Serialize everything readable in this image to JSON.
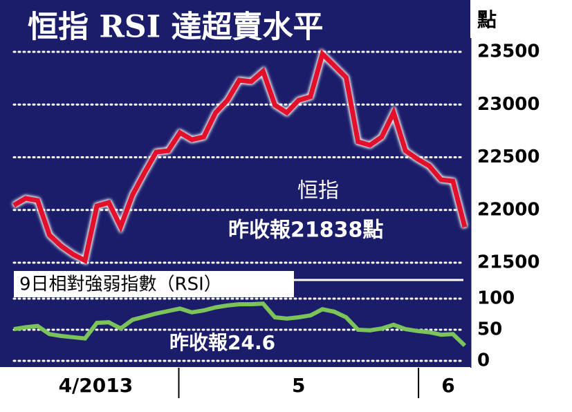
{
  "chart_data": [
    {
      "type": "line",
      "title": "恒指 RSI 達超賣水平",
      "y_label": "點",
      "categories": [
        null,
        null,
        null,
        null,
        null,
        null,
        null,
        null,
        null,
        null,
        null,
        null,
        null,
        null,
        null,
        null,
        null,
        null,
        null,
        null,
        null,
        null,
        null,
        null,
        null,
        null,
        null,
        null,
        null,
        null,
        null,
        null,
        null,
        null,
        null,
        null,
        null,
        null,
        null
      ],
      "series": [
        {
          "name": "恒指",
          "color": "#e3102b",
          "values": [
            22044,
            22110,
            22090,
            21762,
            21657,
            21579,
            21520,
            22038,
            22070,
            21841,
            22143,
            22352,
            22549,
            22562,
            22733,
            22667,
            22693,
            22923,
            23041,
            23231,
            23218,
            23316,
            22995,
            22923,
            23041,
            23074,
            23480,
            23369,
            23257,
            22648,
            22615,
            22693,
            22923,
            22562,
            22484,
            22418,
            22287,
            22274,
            21838
          ]
        }
      ],
      "annotations": [
        "昨收報21838點"
      ],
      "ylim": [
        21500,
        23500
      ],
      "yticks": [
        21500,
        22000,
        22500,
        23000,
        23500
      ],
      "grid": true
    },
    {
      "type": "line",
      "categories": [
        null,
        null,
        null,
        null,
        null,
        null,
        null,
        null,
        null,
        null,
        null,
        null,
        null,
        null,
        null,
        null,
        null,
        null,
        null,
        null,
        null,
        null,
        null,
        null,
        null,
        null,
        null,
        null,
        null,
        null,
        null,
        null,
        null,
        null,
        null,
        null,
        null,
        null,
        null
      ],
      "series": [
        {
          "name": "9日相對強弱指數（RSI）",
          "color": "#7cc35a",
          "values": [
            51,
            54,
            56,
            43,
            40,
            38,
            36,
            61,
            62,
            52,
            66,
            71,
            76,
            80,
            84,
            78,
            81,
            86,
            89,
            91,
            91,
            92,
            70,
            68,
            70,
            73,
            83,
            79,
            70,
            50,
            49,
            52,
            58,
            51,
            48,
            46,
            42,
            43,
            24.6
          ]
        }
      ],
      "annotations": [
        "昨收報24.6"
      ],
      "ylim": [
        0,
        100
      ],
      "yticks": [
        0,
        50,
        100
      ],
      "grid": true,
      "xticks": [
        {
          "value": 6.9,
          "label": "4/2013"
        },
        {
          "value": 24,
          "label": "5"
        },
        {
          "value": 36.6,
          "label": "6"
        }
      ],
      "xdividers": [
        13.9,
        34.1
      ]
    }
  ]
}
